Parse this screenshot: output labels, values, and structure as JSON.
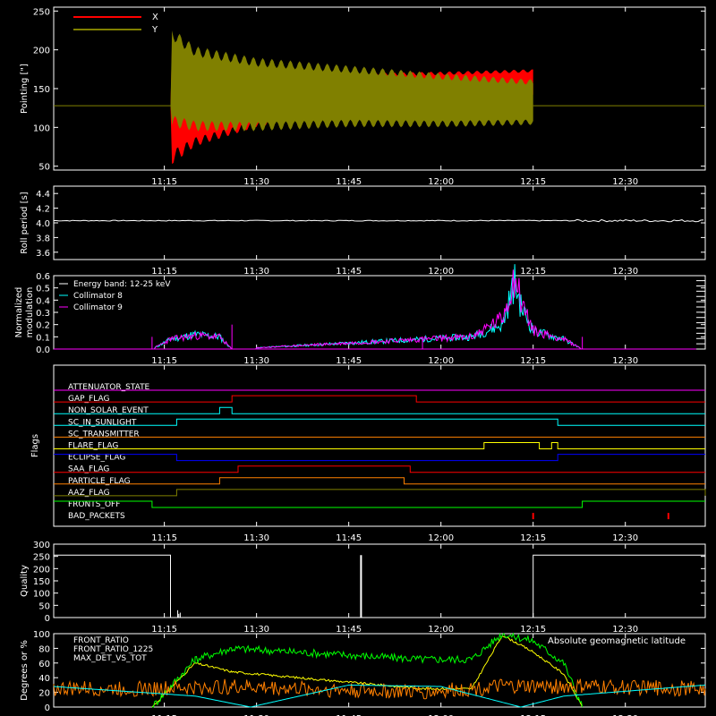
{
  "x_ticks": [
    "11:15",
    "11:30",
    "11:45",
    "12:00",
    "12:15",
    "12:30"
  ],
  "colors": {
    "background": "#000000",
    "axes": "#ffffff",
    "x": "#ff0000",
    "y": "#808000",
    "cyan": "#00ffff",
    "magenta": "#ff00ff",
    "green": "#00ff00",
    "yellow": "#ffff00",
    "orange": "#ff8000"
  },
  "panels": {
    "pointing": {
      "ylabel": "Pointing [\"]",
      "yticks": [
        "250",
        "200",
        "150",
        "100",
        "50"
      ],
      "legend": [
        "X",
        "Y"
      ]
    },
    "roll": {
      "ylabel": "Roll period [s]",
      "yticks": [
        "4.4",
        "4.2",
        "4.0",
        "3.8",
        "3.6"
      ]
    },
    "modulation": {
      "ylabel1": "Normalized",
      "ylabel2": "modulation",
      "yticks": [
        "0.6",
        "0.5",
        "0.4",
        "0.3",
        "0.2",
        "0.1",
        "0.0"
      ],
      "legend": [
        "Energy band: 12-25 keV",
        "Collimator 8",
        "Collimator 9"
      ]
    },
    "flags": {
      "ylabel": "Flags",
      "names": [
        "ATTENUATOR_STATE",
        "GAP_FLAG",
        "NON_SOLAR_EVENT",
        "SC_IN_SUNLIGHT",
        "SC_TRANSMITTER",
        "FLARE_FLAG",
        "ECLIPSE_FLAG",
        "SAA_FLAG",
        "PARTICLE_FLAG",
        "AAZ_FLAG",
        "FRONTS_OFF",
        "BAD_PACKETS"
      ]
    },
    "quality": {
      "ylabel": "Quality",
      "yticks": [
        "300",
        "250",
        "200",
        "150",
        "100",
        "50",
        "0"
      ]
    },
    "ratio": {
      "ylabel": "Degrees or %",
      "yticks": [
        "100",
        "80",
        "60",
        "40",
        "20",
        "0"
      ],
      "legend": [
        "FRONT_RATIO",
        "FRONT_RATIO_1225",
        "MAX_DET_VS_TOT"
      ],
      "right_label": "Absolute geomagnetic latitude"
    }
  },
  "chart_data": [
    {
      "type": "line",
      "ylabel": "Pointing [\"]",
      "ylim": [
        45,
        255
      ],
      "x_range": [
        "10:57",
        "12:43"
      ],
      "series": [
        {
          "name": "X",
          "x": [
            "10:57",
            "11:16",
            "11:16",
            "11:20",
            "11:30",
            "11:45",
            "12:00",
            "12:15",
            "12:16",
            "12:43"
          ],
          "envelope_low": [
            128,
            128,
            50,
            75,
            100,
            120,
            135,
            142,
            128,
            128
          ],
          "envelope_high": [
            128,
            128,
            210,
            175,
            170,
            170,
            172,
            175,
            128,
            128
          ]
        },
        {
          "name": "Y",
          "x": [
            "10:57",
            "11:16",
            "11:16",
            "11:20",
            "11:30",
            "11:45",
            "12:00",
            "12:15",
            "12:16",
            "12:43"
          ],
          "envelope_low": [
            128,
            128,
            100,
            95,
            95,
            100,
            100,
            103,
            128,
            128
          ],
          "envelope_high": [
            128,
            128,
            230,
            205,
            190,
            180,
            170,
            162,
            128,
            128
          ]
        }
      ]
    },
    {
      "type": "line",
      "ylabel": "Roll period [s]",
      "ylim": [
        3.5,
        4.5
      ],
      "x": [
        "10:57",
        "11:30",
        "12:00",
        "12:20",
        "12:43"
      ],
      "values": [
        4.03,
        4.03,
        4.03,
        4.03,
        4.03
      ]
    },
    {
      "type": "line",
      "ylabel": "Normalized modulation",
      "ylim": [
        0,
        0.6
      ],
      "series": [
        {
          "name": "Collimator 8",
          "x": [
            "11:13",
            "11:16",
            "11:20",
            "11:24",
            "11:26",
            "11:57",
            "12:05",
            "12:10",
            "12:12",
            "12:13",
            "12:15",
            "12:20",
            "12:23"
          ],
          "values": [
            0.0,
            0.08,
            0.12,
            0.1,
            0.0,
            0.08,
            0.1,
            0.2,
            0.55,
            0.35,
            0.15,
            0.08,
            0.0
          ]
        },
        {
          "name": "Collimator 9",
          "x": [
            "11:13",
            "11:16",
            "11:20",
            "11:24",
            "11:26",
            "11:57",
            "12:05",
            "12:10",
            "12:12",
            "12:13",
            "12:15",
            "12:20",
            "12:23"
          ],
          "values": [
            0.0,
            0.08,
            0.11,
            0.1,
            0.0,
            0.08,
            0.1,
            0.25,
            0.6,
            0.4,
            0.15,
            0.08,
            0.0
          ]
        }
      ]
    },
    {
      "type": "line",
      "ylabel": "Flags",
      "series": [
        {
          "name": "ATTENUATOR_STATE",
          "x": [
            "10:57",
            "12:43"
          ],
          "values": [
            0,
            0
          ]
        },
        {
          "name": "GAP_FLAG",
          "x": [
            "10:57",
            "11:26",
            "11:56",
            "12:43"
          ],
          "values": [
            0,
            1,
            0,
            0
          ]
        },
        {
          "name": "NON_SOLAR_EVENT",
          "x": [
            "10:57",
            "11:24",
            "11:26",
            "12:43"
          ],
          "values": [
            0,
            1,
            0,
            0
          ]
        },
        {
          "name": "SC_IN_SUNLIGHT",
          "x": [
            "10:57",
            "11:17",
            "12:19",
            "12:43"
          ],
          "values": [
            0,
            1,
            0,
            0
          ]
        },
        {
          "name": "SC_TRANSMITTER",
          "x": [
            "10:57",
            "12:43"
          ],
          "values": [
            0,
            0
          ]
        },
        {
          "name": "FLARE_FLAG",
          "x": [
            "10:57",
            "12:07",
            "12:16",
            "12:18",
            "12:19",
            "12:43"
          ],
          "values": [
            0,
            1,
            0,
            1,
            0,
            0
          ]
        },
        {
          "name": "ECLIPSE_FLAG",
          "x": [
            "10:57",
            "11:17",
            "12:19",
            "12:43"
          ],
          "values": [
            1,
            0,
            1,
            1
          ]
        },
        {
          "name": "SAA_FLAG",
          "x": [
            "10:57",
            "11:27",
            "11:55",
            "12:43"
          ],
          "values": [
            0,
            1,
            0,
            0
          ]
        },
        {
          "name": "PARTICLE_FLAG",
          "x": [
            "10:57",
            "11:24",
            "11:54",
            "12:43"
          ],
          "values": [
            0,
            1,
            0,
            0
          ]
        },
        {
          "name": "AAZ_FLAG",
          "x": [
            "10:57",
            "11:17",
            "12:19",
            "12:43"
          ],
          "values": [
            0,
            1,
            1,
            0
          ]
        },
        {
          "name": "FRONTS_OFF",
          "x": [
            "10:57",
            "11:13",
            "12:23",
            "12:43"
          ],
          "values": [
            1,
            0,
            1,
            1
          ]
        },
        {
          "name": "BAD_PACKETS",
          "x": [
            "12:15",
            "12:37"
          ],
          "values": [
            1,
            1
          ]
        }
      ]
    },
    {
      "type": "line",
      "ylabel": "Quality",
      "ylim": [
        0,
        300
      ],
      "x": [
        "10:57",
        "11:16",
        "11:17",
        "11:47",
        "11:47",
        "12:15",
        "12:15",
        "12:43"
      ],
      "values": [
        255,
        255,
        0,
        0,
        255,
        0,
        255,
        255
      ]
    },
    {
      "type": "line",
      "ylabel": "Degrees or %",
      "ylim": [
        0,
        100
      ],
      "series": [
        {
          "name": "FRONT_RATIO",
          "x": [
            "11:13",
            "11:20",
            "11:26",
            "11:57",
            "12:05",
            "12:10",
            "12:15",
            "12:20",
            "12:23"
          ],
          "values": [
            0,
            60,
            48,
            25,
            25,
            98,
            75,
            45,
            0
          ]
        },
        {
          "name": "FRONT_RATIO_1225",
          "x": [
            "11:13",
            "11:20",
            "11:26",
            "11:57",
            "12:05",
            "12:10",
            "12:15",
            "12:20",
            "12:23"
          ],
          "values": [
            0,
            65,
            80,
            65,
            65,
            100,
            90,
            60,
            0
          ]
        },
        {
          "name": "MAX_DET_VS_TOT",
          "x": [
            "10:57",
            "11:15",
            "11:26",
            "11:57",
            "12:10",
            "12:23",
            "12:43"
          ],
          "values": [
            25,
            25,
            28,
            20,
            28,
            28,
            25
          ]
        },
        {
          "name": "Absolute geomagnetic latitude",
          "x": [
            "10:57",
            "11:20",
            "11:29",
            "11:45",
            "12:00",
            "12:13",
            "12:20",
            "12:43"
          ],
          "values": [
            28,
            15,
            0,
            30,
            28,
            0,
            15,
            30
          ]
        }
      ]
    }
  ]
}
